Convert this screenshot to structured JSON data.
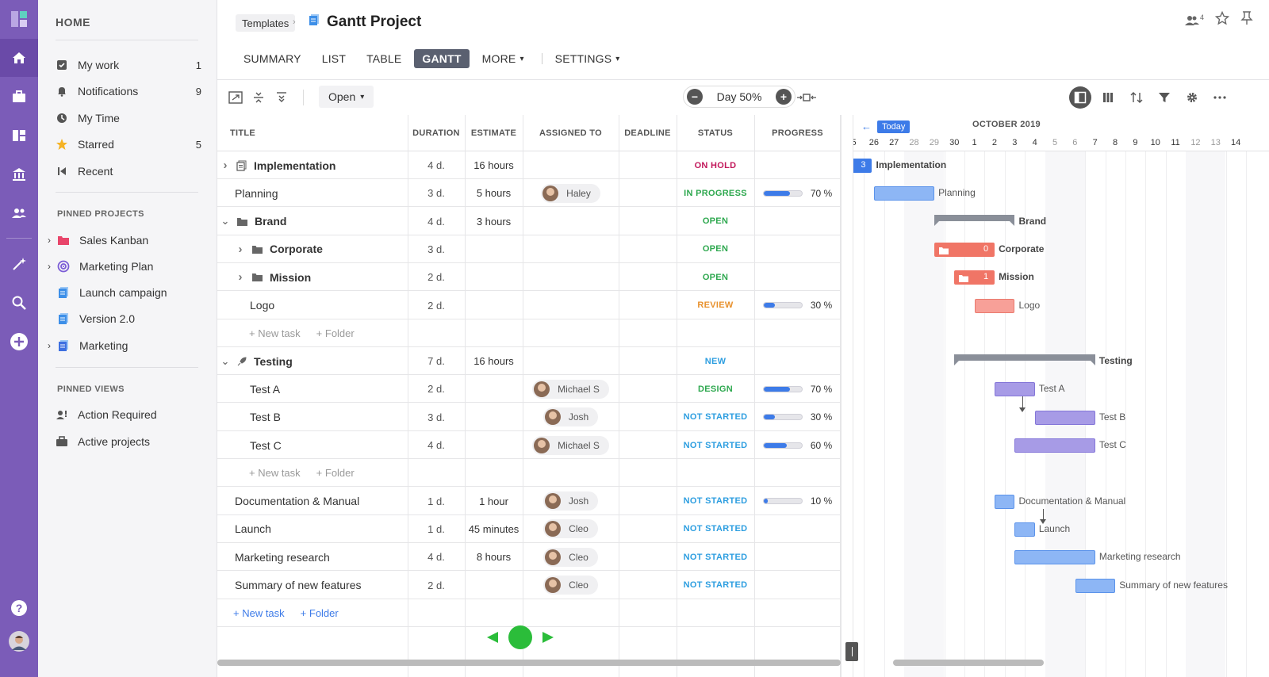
{
  "sidebar": {
    "home": "HOME",
    "nav": [
      {
        "label": "My work",
        "count": "1"
      },
      {
        "label": "Notifications",
        "count": "9"
      },
      {
        "label": "My Time",
        "count": ""
      },
      {
        "label": "Starred",
        "count": "5"
      },
      {
        "label": "Recent",
        "count": ""
      }
    ],
    "pinned_projects_title": "PINNED PROJECTS",
    "pinned_projects": [
      {
        "label": "Sales Kanban"
      },
      {
        "label": "Marketing Plan"
      },
      {
        "label": "Launch campaign"
      },
      {
        "label": "Version 2.0"
      },
      {
        "label": "Marketing"
      }
    ],
    "pinned_views_title": "PINNED VIEWS",
    "pinned_views": [
      {
        "label": "Action Required"
      },
      {
        "label": "Active projects"
      }
    ]
  },
  "header": {
    "breadcrumb": "Templates",
    "title": "Gantt Project",
    "members_count": "4"
  },
  "tabs": {
    "summary": "SUMMARY",
    "list": "LIST",
    "table": "TABLE",
    "gantt": "GANTT",
    "more": "MORE",
    "settings": "SETTINGS"
  },
  "toolbar": {
    "open_label": "Open",
    "zoom_label": "Day 50%",
    "zoom_minus": "−",
    "zoom_plus": "+"
  },
  "table": {
    "headers": {
      "title": "TITLE",
      "duration": "DURATION",
      "estimate": "ESTIMATE",
      "assigned": "ASSIGNED TO",
      "deadline": "DEADLINE",
      "status": "STATUS",
      "progress": "PROGRESS"
    },
    "rows": [
      {
        "title": "Implementation",
        "duration": "4 d.",
        "estimate": "16 hours",
        "assigned": "",
        "status": "ON HOLD",
        "progress": "",
        "progress_value": 0
      },
      {
        "title": "Planning",
        "duration": "3 d.",
        "estimate": "5 hours",
        "assigned": "Haley",
        "status": "IN PROGRESS",
        "progress": "70 %",
        "progress_value": 70
      },
      {
        "title": "Brand",
        "duration": "4 d.",
        "estimate": "3 hours",
        "assigned": "",
        "status": "OPEN",
        "progress": "",
        "progress_value": 0
      },
      {
        "title": "Corporate",
        "duration": "3 d.",
        "estimate": "",
        "assigned": "",
        "status": "OPEN",
        "progress": "",
        "progress_value": 0
      },
      {
        "title": "Mission",
        "duration": "2 d.",
        "estimate": "",
        "assigned": "",
        "status": "OPEN",
        "progress": "",
        "progress_value": 0
      },
      {
        "title": "Logo",
        "duration": "2 d.",
        "estimate": "",
        "assigned": "",
        "status": "REVIEW",
        "progress": "30 %",
        "progress_value": 30
      },
      {
        "title": "Testing",
        "duration": "7 d.",
        "estimate": "16 hours",
        "assigned": "",
        "status": "NEW",
        "progress": "",
        "progress_value": 0
      },
      {
        "title": "Test A",
        "duration": "2 d.",
        "estimate": "",
        "assigned": "Michael S",
        "status": "DESIGN",
        "progress": "70 %",
        "progress_value": 70
      },
      {
        "title": "Test B",
        "duration": "3 d.",
        "estimate": "",
        "assigned": "Josh",
        "status": "NOT STARTED",
        "progress": "30 %",
        "progress_value": 30
      },
      {
        "title": "Test C",
        "duration": "4 d.",
        "estimate": "",
        "assigned": "Michael S",
        "status": "NOT STARTED",
        "progress": "60 %",
        "progress_value": 60
      },
      {
        "title": "Documentation & Manual",
        "duration": "1 d.",
        "estimate": "1 hour",
        "assigned": "Josh",
        "status": "NOT STARTED",
        "progress": "10 %",
        "progress_value": 10
      },
      {
        "title": "Launch",
        "duration": "1 d.",
        "estimate": "45 minutes",
        "assigned": "Cleo",
        "status": "NOT STARTED",
        "progress": "",
        "progress_value": 0
      },
      {
        "title": "Marketing research",
        "duration": "4 d.",
        "estimate": "8 hours",
        "assigned": "Cleo",
        "status": "NOT STARTED",
        "progress": "",
        "progress_value": 0
      },
      {
        "title": "Summary of new features",
        "duration": "2 d.",
        "estimate": "",
        "assigned": "Cleo",
        "status": "NOT STARTED",
        "progress": "",
        "progress_value": 0
      }
    ],
    "new_task": "+ New task",
    "new_folder": "+ Folder"
  },
  "status_colors": {
    "ON HOLD": "#c2185b",
    "IN PROGRESS": "#2ea84f",
    "OPEN": "#2ea84f",
    "REVIEW": "#e8912d",
    "NEW": "#2d9ee0",
    "DESIGN": "#2ea84f",
    "NOT STARTED": "#2d9ee0"
  },
  "gantt": {
    "today_label": "Today",
    "month": "OCTOBER 2019",
    "days": [
      "5",
      "26",
      "27",
      "28",
      "29",
      "30",
      "1",
      "2",
      "3",
      "4",
      "5",
      "6",
      "7",
      "8",
      "9",
      "10",
      "11",
      "12",
      "13",
      "14"
    ],
    "weekend_days": [
      3,
      4,
      10,
      11,
      17,
      18
    ],
    "bars": [
      {
        "label": "Implementation",
        "badge": "3"
      },
      {
        "label": "Planning"
      },
      {
        "label": "Brand"
      },
      {
        "label": "Corporate",
        "badge": "0"
      },
      {
        "label": "Mission",
        "badge": "1"
      },
      {
        "label": "Logo"
      },
      {
        "label": "Testing"
      },
      {
        "label": "Test A"
      },
      {
        "label": "Test B"
      },
      {
        "label": "Test C"
      },
      {
        "label": "Documentation & Manual"
      },
      {
        "label": "Launch"
      },
      {
        "label": "Marketing research"
      },
      {
        "label": "Summary of new features"
      }
    ]
  }
}
